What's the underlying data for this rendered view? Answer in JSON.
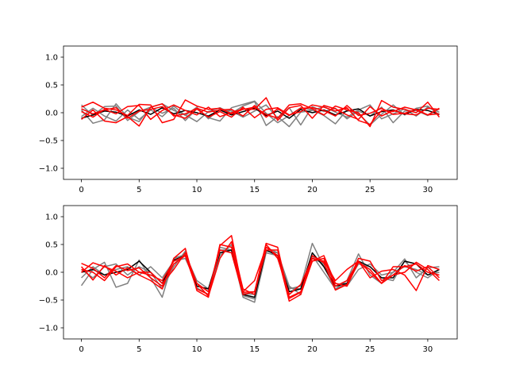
{
  "chart_data": [
    {
      "type": "line",
      "title": "",
      "xlabel": "",
      "ylabel": "",
      "xlim": [
        -1.55,
        32.55
      ],
      "ylim": [
        -1.2,
        1.2
      ],
      "xticks": [
        0,
        5,
        10,
        15,
        20,
        25,
        30
      ],
      "xtick_labels": [
        "0",
        "5",
        "10",
        "15",
        "20",
        "25",
        "30"
      ],
      "yticks": [
        -1.0,
        -0.5,
        0.0,
        0.5,
        1.0
      ],
      "ytick_labels": [
        "−1.0",
        "−0.5",
        "0.0",
        "0.5",
        "1.0"
      ],
      "grid": false,
      "legend": false,
      "x": [
        0,
        1,
        2,
        3,
        4,
        5,
        6,
        7,
        8,
        9,
        10,
        11,
        12,
        13,
        14,
        15,
        16,
        17,
        18,
        19,
        20,
        21,
        22,
        23,
        24,
        25,
        26,
        27,
        28,
        29,
        30,
        31
      ],
      "series": [
        {
          "color": "#808080",
          "values": [
            0.14,
            -0.05,
            0.11,
            0.12,
            -0.14,
            0.02,
            0.1,
            0.16,
            0.04,
            -0.04,
            -0.16,
            0.02,
            0.09,
            -0.01,
            0.12,
            0.2,
            -0.23,
            -0.07,
            -0.25,
            0.01,
            0.04,
            0.11,
            0.01,
            -0.08,
            0.05,
            0.14,
            -0.11,
            -0.02,
            0.07,
            -0.06,
            0.1,
            0.01
          ]
        },
        {
          "color": "#808080",
          "values": [
            0.05,
            -0.19,
            -0.13,
            0.16,
            -0.08,
            -0.16,
            0.1,
            -0.01,
            0.08,
            -0.14,
            0.07,
            -0.09,
            -0.15,
            0.09,
            0.15,
            0.21,
            -0.01,
            -0.18,
            -0.05,
            0.09,
            0.05,
            -0.05,
            -0.2,
            0.05,
            -0.02,
            -0.22,
            -0.03,
            0.14,
            -0.04,
            0.08,
            0.12,
            -0.04
          ]
        },
        {
          "color": "#808080",
          "values": [
            -0.07,
            0.08,
            -0.06,
            -0.15,
            0.05,
            -0.12,
            0.05,
            -0.07,
            0.12,
            -0.05,
            0.1,
            -0.11,
            0.07,
            0.03,
            -0.08,
            0.03,
            0.14,
            -0.1,
            0.09,
            -0.22,
            0.11,
            0.02,
            0.08,
            -0.11,
            0.03,
            -0.06,
            0.1,
            -0.18,
            0.03,
            0.04,
            -0.05,
            0.07
          ]
        },
        {
          "color": "#000000",
          "values": [
            -0.1,
            -0.04,
            0.03,
            0.01,
            -0.06,
            0.05,
            -0.03,
            0.09,
            -0.02,
            0.04,
            0.0,
            -0.06,
            0.05,
            -0.04,
            0.02,
            0.08,
            -0.05,
            0.03,
            -0.1,
            0.06,
            0.0,
            0.05,
            -0.04,
            0.03,
            0.07,
            -0.06,
            0.02,
            0.05,
            -0.03,
            0.06,
            0.04,
            -0.03
          ]
        },
        {
          "color": "#ff0000",
          "values": [
            0.1,
            0.19,
            0.08,
            0.05,
            -0.05,
            0.15,
            0.14,
            -0.18,
            -0.12,
            0.23,
            0.12,
            0.06,
            0.08,
            -0.02,
            0.06,
            0.1,
            -0.03,
            -0.1,
            0.14,
            0.16,
            0.07,
            -0.04,
            0.12,
            0.05,
            0.0,
            -0.25,
            0.22,
            0.1,
            0.06,
            0.0,
            0.19,
            -0.08
          ]
        },
        {
          "color": "#ff0000",
          "values": [
            -0.12,
            0.05,
            -0.15,
            -0.18,
            -0.07,
            -0.24,
            0.1,
            0.16,
            -0.06,
            -0.02,
            0.08,
            0.01,
            0.05,
            0.06,
            -0.06,
            0.13,
            -0.08,
            0.07,
            -0.05,
            0.08,
            0.09,
            0.04,
            -0.06,
            0.13,
            -0.05,
            -0.01,
            0.08,
            -0.03,
            -0.01,
            0.06,
            -0.04,
            0.08
          ]
        },
        {
          "color": "#ff0000",
          "values": [
            0.02,
            -0.08,
            0.06,
            -0.02,
            0.11,
            0.13,
            -0.12,
            0.04,
            0.14,
            0.04,
            -0.04,
            0.1,
            -0.07,
            0.0,
            0.07,
            0.06,
            0.27,
            -0.14,
            0.09,
            0.13,
            -0.1,
            0.13,
            0.07,
            -0.04,
            -0.12,
            0.11,
            -0.06,
            0.04,
            -0.02,
            -0.04,
            0.08,
            0.06
          ]
        },
        {
          "color": "#ff0000",
          "values": [
            0.07,
            -0.02,
            0.05,
            0.09,
            -0.1,
            0.03,
            0.06,
            0.11,
            -0.04,
            -0.1,
            0.07,
            -0.08,
            0.02,
            -0.08,
            0.1,
            -0.09,
            0.06,
            0.09,
            -0.04,
            0.02,
            0.14,
            0.1,
            0.03,
            0.09,
            -0.14,
            -0.21,
            0.04,
            0.02,
            0.1,
            0.05,
            -0.04,
            -0.02
          ]
        }
      ]
    },
    {
      "type": "line",
      "title": "",
      "xlabel": "",
      "ylabel": "",
      "xlim": [
        -1.55,
        32.55
      ],
      "ylim": [
        -1.2,
        1.2
      ],
      "xticks": [
        0,
        5,
        10,
        15,
        20,
        25,
        30
      ],
      "xtick_labels": [
        "0",
        "5",
        "10",
        "15",
        "20",
        "25",
        "30"
      ],
      "yticks": [
        -1.0,
        -0.5,
        0.0,
        0.5,
        1.0
      ],
      "ytick_labels": [
        "−1.0",
        "−0.5",
        "0.0",
        "0.5",
        "1.0"
      ],
      "grid": false,
      "legend": false,
      "x": [
        0,
        1,
        2,
        3,
        4,
        5,
        6,
        7,
        8,
        9,
        10,
        11,
        12,
        13,
        14,
        15,
        16,
        17,
        18,
        19,
        20,
        21,
        22,
        23,
        24,
        25,
        26,
        27,
        28,
        29,
        30,
        31
      ],
      "series": [
        {
          "color": "#808080",
          "values": [
            -0.24,
            0.05,
            0.18,
            -0.27,
            -0.2,
            0.22,
            -0.1,
            -0.45,
            0.25,
            0.32,
            -0.15,
            -0.3,
            0.4,
            0.4,
            -0.45,
            -0.54,
            0.35,
            0.3,
            -0.3,
            -0.25,
            0.52,
            0.1,
            -0.3,
            -0.15,
            0.33,
            -0.05,
            -0.2,
            0.0,
            0.24,
            -0.1,
            0.08,
            0.1
          ]
        },
        {
          "color": "#808080",
          "values": [
            0.05,
            -0.1,
            0.1,
            0.15,
            -0.05,
            0.1,
            0.0,
            -0.3,
            0.1,
            0.38,
            -0.28,
            -0.4,
            0.3,
            0.5,
            -0.42,
            -0.48,
            0.45,
            0.35,
            -0.25,
            -0.4,
            0.3,
            0.0,
            -0.3,
            -0.2,
            0.15,
            0.1,
            -0.1,
            -0.15,
            0.2,
            0.0,
            -0.1,
            0.05
          ]
        },
        {
          "color": "#808080",
          "values": [
            -0.1,
            0.1,
            -0.05,
            0.05,
            0.1,
            -0.05,
            0.1,
            -0.1,
            0.2,
            0.25,
            -0.2,
            -0.35,
            0.45,
            0.4,
            -0.38,
            -0.4,
            0.38,
            0.35,
            -0.28,
            -0.3,
            0.25,
            0.15,
            -0.2,
            -0.25,
            0.05,
            0.15,
            -0.05,
            0.0,
            0.1,
            0.05,
            -0.05,
            0.0
          ]
        },
        {
          "color": "#000000",
          "values": [
            0.0,
            0.05,
            -0.05,
            0.0,
            0.05,
            0.2,
            0.0,
            -0.2,
            0.22,
            0.3,
            -0.25,
            -0.3,
            0.35,
            0.4,
            -0.4,
            -0.45,
            0.4,
            0.3,
            -0.35,
            -0.3,
            0.35,
            0.1,
            -0.25,
            -0.2,
            0.2,
            0.1,
            -0.1,
            -0.1,
            0.2,
            0.15,
            -0.05,
            0.05
          ]
        },
        {
          "color": "#ff0000",
          "values": [
            0.16,
            0.07,
            -0.1,
            0.12,
            0.03,
            0.08,
            -0.1,
            -0.25,
            0.15,
            0.3,
            -0.3,
            -0.4,
            0.48,
            0.66,
            -0.36,
            -0.35,
            0.52,
            0.45,
            -0.47,
            -0.36,
            0.3,
            0.17,
            -0.32,
            -0.22,
            0.25,
            0.2,
            -0.15,
            -0.05,
            0.12,
            0.02,
            0.1,
            -0.1
          ]
        },
        {
          "color": "#ff0000",
          "values": [
            0.1,
            -0.14,
            0.12,
            -0.05,
            0.08,
            -0.05,
            -0.15,
            -0.3,
            0.25,
            0.43,
            -0.33,
            -0.45,
            0.5,
            0.45,
            -0.35,
            -0.15,
            0.45,
            0.3,
            -0.52,
            -0.4,
            0.2,
            0.3,
            -0.2,
            -0.25,
            0.18,
            0.05,
            -0.2,
            -0.05,
            0.0,
            0.18,
            0.05,
            -0.15
          ]
        },
        {
          "color": "#ff0000",
          "values": [
            0.0,
            0.17,
            0.1,
            0.02,
            -0.1,
            0.0,
            0.0,
            -0.2,
            0.05,
            0.35,
            -0.2,
            -0.43,
            0.25,
            0.55,
            -0.3,
            -0.4,
            0.5,
            0.25,
            -0.4,
            -0.22,
            0.25,
            0.2,
            -0.15,
            0.05,
            0.2,
            -0.1,
            0.02,
            0.05,
            -0.05,
            -0.33,
            0.12,
            0.05
          ]
        },
        {
          "color": "#ff0000",
          "values": [
            0.05,
            0.0,
            -0.15,
            0.1,
            0.15,
            0.0,
            -0.05,
            -0.15,
            0.2,
            0.3,
            -0.2,
            -0.35,
            0.4,
            0.35,
            -0.4,
            -0.35,
            0.4,
            0.4,
            -0.45,
            -0.35,
            0.2,
            0.25,
            -0.25,
            -0.15,
            0.2,
            0.0,
            -0.2,
            0.1,
            0.1,
            0.15,
            0.0,
            -0.05
          ]
        }
      ]
    }
  ]
}
